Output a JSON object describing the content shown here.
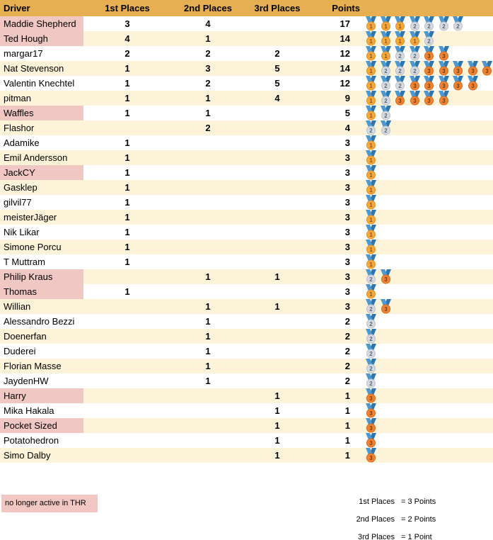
{
  "header": {
    "columns": [
      "Driver",
      "1st Places",
      "2nd Places",
      "3rd Places",
      "Points"
    ]
  },
  "rows": [
    {
      "driver": "Maddie Shepherd",
      "first": "3",
      "second": "4",
      "third": "",
      "points": "17",
      "inactive": true,
      "medals": [
        1,
        1,
        1,
        2,
        2,
        2,
        2
      ]
    },
    {
      "driver": "Ted Hough",
      "first": "4",
      "second": "1",
      "third": "",
      "points": "14",
      "inactive": true,
      "medals": [
        1,
        1,
        1,
        1,
        2
      ]
    },
    {
      "driver": "margar17",
      "first": "2",
      "second": "2",
      "third": "2",
      "points": "12",
      "inactive": false,
      "medals": [
        1,
        1,
        2,
        2,
        3,
        3
      ]
    },
    {
      "driver": "Nat Stevenson",
      "first": "1",
      "second": "3",
      "third": "5",
      "points": "14",
      "inactive": false,
      "medals": [
        1,
        2,
        2,
        2,
        3,
        3,
        3,
        3,
        3
      ]
    },
    {
      "driver": "Valentin Knechtel",
      "first": "1",
      "second": "2",
      "third": "5",
      "points": "12",
      "inactive": false,
      "medals": [
        1,
        2,
        2,
        3,
        3,
        3,
        3,
        3
      ]
    },
    {
      "driver": "pitman",
      "first": "1",
      "second": "1",
      "third": "4",
      "points": "9",
      "inactive": false,
      "medals": [
        1,
        2,
        3,
        3,
        3,
        3
      ]
    },
    {
      "driver": "Waffles",
      "first": "1",
      "second": "1",
      "third": "",
      "points": "5",
      "inactive": true,
      "medals": [
        1,
        2
      ]
    },
    {
      "driver": "Flashor",
      "first": "",
      "second": "2",
      "third": "",
      "points": "4",
      "inactive": false,
      "medals": [
        2,
        2
      ]
    },
    {
      "driver": "Adamike",
      "first": "1",
      "second": "",
      "third": "",
      "points": "3",
      "inactive": false,
      "medals": [
        1
      ]
    },
    {
      "driver": "Emil Andersson",
      "first": "1",
      "second": "",
      "third": "",
      "points": "3",
      "inactive": false,
      "medals": [
        1
      ]
    },
    {
      "driver": "JackCY",
      "first": "1",
      "second": "",
      "third": "",
      "points": "3",
      "inactive": true,
      "medals": [
        1
      ]
    },
    {
      "driver": "Gasklep",
      "first": "1",
      "second": "",
      "third": "",
      "points": "3",
      "inactive": false,
      "medals": [
        1
      ]
    },
    {
      "driver": "gilvil77",
      "first": "1",
      "second": "",
      "third": "",
      "points": "3",
      "inactive": false,
      "medals": [
        1
      ]
    },
    {
      "driver": "meisterJäger",
      "first": "1",
      "second": "",
      "third": "",
      "points": "3",
      "inactive": false,
      "medals": [
        1
      ]
    },
    {
      "driver": "Nik Likar",
      "first": "1",
      "second": "",
      "third": "",
      "points": "3",
      "inactive": false,
      "medals": [
        1
      ]
    },
    {
      "driver": "Simone Porcu",
      "first": "1",
      "second": "",
      "third": "",
      "points": "3",
      "inactive": false,
      "medals": [
        1
      ]
    },
    {
      "driver": "T Muttram",
      "first": "1",
      "second": "",
      "third": "",
      "points": "3",
      "inactive": false,
      "medals": [
        1
      ]
    },
    {
      "driver": "Philip Kraus",
      "first": "",
      "second": "1",
      "third": "1",
      "points": "3",
      "inactive": true,
      "medals": [
        2,
        3
      ]
    },
    {
      "driver": "Thomas",
      "first": "1",
      "second": "",
      "third": "",
      "points": "3",
      "inactive": true,
      "medals": [
        1
      ]
    },
    {
      "driver": "Willian",
      "first": "",
      "second": "1",
      "third": "1",
      "points": "3",
      "inactive": false,
      "medals": [
        2,
        3
      ]
    },
    {
      "driver": "Alessandro Bezzi",
      "first": "",
      "second": "1",
      "third": "",
      "points": "2",
      "inactive": false,
      "medals": [
        2
      ]
    },
    {
      "driver": "Doenerfan",
      "first": "",
      "second": "1",
      "third": "",
      "points": "2",
      "inactive": false,
      "medals": [
        2
      ]
    },
    {
      "driver": "Duderei",
      "first": "",
      "second": "1",
      "third": "",
      "points": "2",
      "inactive": false,
      "medals": [
        2
      ]
    },
    {
      "driver": "Florian Masse",
      "first": "",
      "second": "1",
      "third": "",
      "points": "2",
      "inactive": false,
      "medals": [
        2
      ]
    },
    {
      "driver": "JaydenHW",
      "first": "",
      "second": "1",
      "third": "",
      "points": "2",
      "inactive": false,
      "medals": [
        2
      ]
    },
    {
      "driver": "Harry",
      "first": "",
      "second": "",
      "third": "1",
      "points": "1",
      "inactive": true,
      "medals": [
        3
      ]
    },
    {
      "driver": "Mika Hakala",
      "first": "",
      "second": "",
      "third": "1",
      "points": "1",
      "inactive": false,
      "medals": [
        3
      ]
    },
    {
      "driver": "Pocket Sized",
      "first": "",
      "second": "",
      "third": "1",
      "points": "1",
      "inactive": true,
      "medals": [
        3
      ]
    },
    {
      "driver": "Potatohedron",
      "first": "",
      "second": "",
      "third": "1",
      "points": "1",
      "inactive": false,
      "medals": [
        3
      ]
    },
    {
      "driver": "Simo Dalby",
      "first": "",
      "second": "",
      "third": "1",
      "points": "1",
      "inactive": false,
      "medals": [
        3
      ]
    }
  ],
  "footer": {
    "inactive_note": "no longer active in THR",
    "scoring": [
      {
        "label": "1st Places",
        "value": "= 3 Points"
      },
      {
        "label": "2nd Places",
        "value": "= 2 Points"
      },
      {
        "label": "3rd Places",
        "value": "= 1 Point"
      }
    ]
  },
  "colors": {
    "header_bg": "#E6AF52",
    "row_alt_bg": "#FCF3D9",
    "inactive_bg": "#F1C7C4",
    "ribbon_left": "#4C98D0",
    "ribbon_right": "#2E76B0",
    "medal_gold_fill": "#F3A73C",
    "medal_gold_border": "#E09126",
    "medal_gold_text": "#8A5514",
    "medal_silver_fill": "#D5DAE0",
    "medal_silver_border": "#BAC1C9",
    "medal_silver_text": "#5E6773",
    "medal_bronze_fill": "#EF8434",
    "medal_bronze_border": "#D5691C",
    "medal_bronze_text": "#73380C"
  },
  "icons": {
    "gold_medal": "gold-medal-icon",
    "silver_medal": "silver-medal-icon",
    "bronze_medal": "bronze-medal-icon"
  }
}
